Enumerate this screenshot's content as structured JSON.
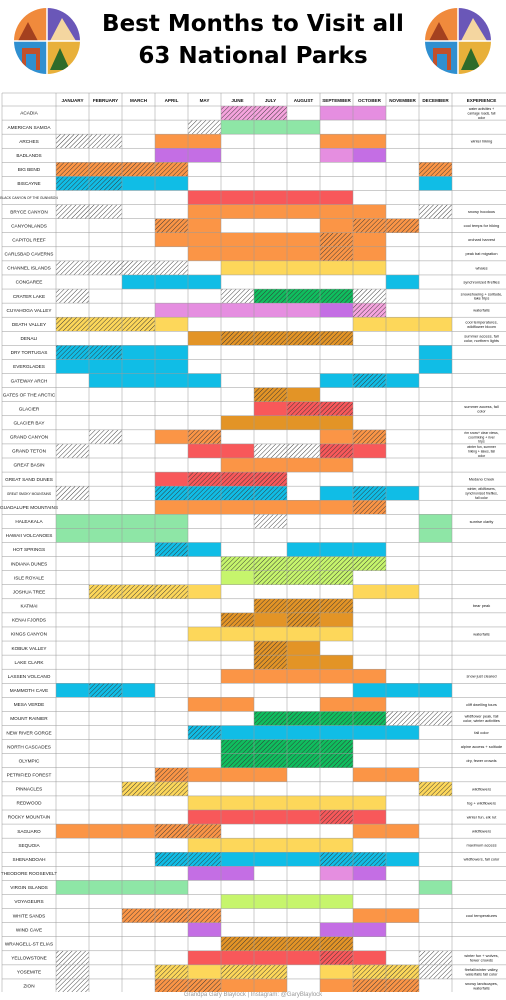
{
  "title_line1": "Best Months to Visit all",
  "title_line2": "63 National Parks",
  "chart_data": {
    "type": "heatmap",
    "columns": [
      "JANUARY",
      "FEBRUARY",
      "MARCH",
      "APRIL",
      "MAY",
      "JUNE",
      "JULY",
      "AUGUST",
      "SEPTEMBER",
      "OCTOBER",
      "NOVEMBER",
      "DECEMBER"
    ],
    "experience_header": "EXPERIENCE",
    "rows": [
      {
        "park": "ACADIA",
        "cells": "00000dd0mm00",
        "exp": "water activities + carriage roads, fall color"
      },
      {
        "park": "AMERICAN SAMOA",
        "cells": "0000hggg0000",
        "exp": ""
      },
      {
        "park": "ARCHES",
        "cells": "hh0oo000oo00",
        "exp": "winter hiking"
      },
      {
        "park": "BADLANDS",
        "cells": "000pp000mp00",
        "exp": ""
      },
      {
        "park": "BIG BEND",
        "cells": "OOOO0000000O",
        "exp": ""
      },
      {
        "park": "BISCAYNE",
        "cells": "TTcc0000000c",
        "exp": ""
      },
      {
        "park": "BLACK CANYON OF THE GUNNISON",
        "cells": "0000rrrrr000",
        "exp": ""
      },
      {
        "park": "BRYCE CANYON",
        "cells": "hh00oooooo0h",
        "exp": "snowy hoodoos"
      },
      {
        "park": "CANYONLANDS",
        "cells": "000Oo000oOO0",
        "exp": "cool temps for hiking"
      },
      {
        "park": "CAPITOL REEF",
        "cells": "000oooooOo00",
        "exp": "orchard harvest"
      },
      {
        "park": "CARLSBAD CAVERNS",
        "cells": "0000ooooOo00",
        "exp": "peak bat migration"
      },
      {
        "park": "CHANNEL ISLANDS",
        "cells": "hhhh0yyyyy00",
        "exp": "whales"
      },
      {
        "park": "CONGAREE",
        "cells": "00ccc00000c0",
        "exp": "synchronized fireflies"
      },
      {
        "park": "CRATER LAKE",
        "cells": "h0000hGGGh00",
        "exp": "snowshoeing + solitude, lake trips"
      },
      {
        "park": "CUYAHOGA VALLEY",
        "cells": "000mmmmmpd00",
        "exp": "waterfalls"
      },
      {
        "park": "DEATH VALLEY",
        "cells": "YYYy00000yyy",
        "exp": "cool temperatures, wildflower bloom"
      },
      {
        "park": "DENALI",
        "cells": "0000aAAAA000",
        "exp": "summer access, fall color, northern lights"
      },
      {
        "park": "DRY TORTUGAS",
        "cells": "TTcc0000000c",
        "exp": ""
      },
      {
        "park": "EVERGLADES",
        "cells": "cccc0000000c",
        "exp": ""
      },
      {
        "park": "GATEWAY ARCH",
        "cells": "0cccc000cTc0",
        "exp": ""
      },
      {
        "park": "GATES OF THE ARCTIC",
        "cells": "000000Aa0000",
        "exp": ""
      },
      {
        "park": "GLACIER",
        "cells": "000000rRR000",
        "exp": "summer access, fall color"
      },
      {
        "park": "GLACIER BAY",
        "cells": "00000aaaa000",
        "exp": ""
      },
      {
        "park": "GRAND CANYON",
        "cells": "0h0oO000oO00",
        "exp": "rim snow+ clear views, cool hiking + river trips"
      },
      {
        "park": "GRAND TETON",
        "cells": "h000rrhhRr00",
        "exp": "winter fun, summer hiking + lakes, fall color"
      },
      {
        "park": "GREAT BASIN",
        "cells": "00000oooo000",
        "exp": ""
      },
      {
        "park": "GREAT SAND DUNES",
        "cells": "000rRRR00000",
        "exp": "Medano Creek"
      },
      {
        "park": "GREAT SMOKY MOUNTAINS",
        "cells": "h00TTTT0cTc0",
        "exp": "winter, wildflowers, synchronized fireflies, fall color"
      },
      {
        "park": "GUADALUPE MOUNTAINS",
        "cells": "000ooooooO00",
        "exp": ""
      },
      {
        "park": "HALEAKALA",
        "cells": "gggg00h0000g",
        "exp": "sunrise clarity"
      },
      {
        "park": "HAWAII VOLCANOES",
        "cells": "gggg0000000g",
        "exp": ""
      },
      {
        "park": "HOT SPRINGS",
        "cells": "000Tc00ccc00",
        "exp": ""
      },
      {
        "park": "INDIANA DUNES",
        "cells": "00000LLLLL00",
        "exp": ""
      },
      {
        "park": "ISLE ROYALE",
        "cells": "00000lLLL000",
        "exp": ""
      },
      {
        "park": "JOSHUA TREE",
        "cells": "0YYYy0000yy0",
        "exp": ""
      },
      {
        "park": "KATMAI",
        "cells": "000000AAA000",
        "exp": "bear peak"
      },
      {
        "park": "KENAI FJORDS",
        "cells": "00000AaAa000",
        "exp": ""
      },
      {
        "park": "KINGS CANYON",
        "cells": "0000yyyyy000",
        "exp": "waterfalls"
      },
      {
        "park": "KOBUK VALLEY",
        "cells": "000000Aa0000",
        "exp": ""
      },
      {
        "park": "LAKE CLARK",
        "cells": "000000Aaa000",
        "exp": ""
      },
      {
        "park": "LASSEN VOLCANO",
        "cells": "00000ooooo00",
        "exp": "snow just cleared"
      },
      {
        "park": "MAMMOTH CAVE",
        "cells": "cTc000000ccc",
        "exp": ""
      },
      {
        "park": "MESA VERDE",
        "cells": "0000oo00oo00",
        "exp": "cliff dwelling tours"
      },
      {
        "park": "MOUNT RAINIER",
        "cells": "000000GGGGhh",
        "exp": "wildflower peak, fall color, winter activities"
      },
      {
        "park": "NEW RIVER GORGE",
        "cells": "0000Tcccccc0",
        "exp": "fall color"
      },
      {
        "park": "NORTH CASCADES",
        "cells": "00000GGGG000",
        "exp": "alpine access + solitude"
      },
      {
        "park": "OLYMPIC",
        "cells": "00000GGGG000",
        "exp": "dry, fewer crowds"
      },
      {
        "park": "PETRIFIED FOREST",
        "cells": "000Oooo00oo0",
        "exp": ""
      },
      {
        "park": "PINNACLES",
        "cells": "00YY0000000Y",
        "exp": "wildflowers"
      },
      {
        "park": "REDWOOD",
        "cells": "0000yyyyyy00",
        "exp": "fog + wildflowers"
      },
      {
        "park": "ROCKY MOUNTAIN",
        "cells": "0000rrrrRr00",
        "exp": "winter fun, elk rut"
      },
      {
        "park": "SAGUARO",
        "cells": "oooOO0000oo0",
        "exp": "wildflowers"
      },
      {
        "park": "SEQUOIA",
        "cells": "0000yyyyy000",
        "exp": "maximum access"
      },
      {
        "park": "SHENANDOAH",
        "cells": "000TTcccTTc0",
        "exp": "wildflowers, fall color"
      },
      {
        "park": "THEODORE ROOSEVELT",
        "cells": "0000pp00mp00",
        "exp": ""
      },
      {
        "park": "VIRGIN ISLANDS",
        "cells": "gggg0000000g",
        "exp": ""
      },
      {
        "park": "VOYAGEURS",
        "cells": "00000llll000",
        "exp": ""
      },
      {
        "park": "WHITE SANDS",
        "cells": "00OOO0000oo0",
        "exp": "cool temperatures"
      },
      {
        "park": "WIND CAVE",
        "cells": "0000p000pp00",
        "exp": ""
      },
      {
        "park": "WRANGELL-ST ELIAS",
        "cells": "00000AAAA000",
        "exp": ""
      },
      {
        "park": "YELLOWSTONE",
        "cells": "h000rrrrRr0h",
        "exp": "winter fun + wolves, fewer crowds"
      },
      {
        "park": "YOSEMITE",
        "cells": "h00YyYY0yYYh",
        "exp": "firefall/winter valley, waterfalls fall color"
      },
      {
        "park": "ZION",
        "cells": "h00OOoo0oOO0",
        "exp": "snowy landscapes, waterfalls"
      }
    ],
    "legend": {
      "0": "#ffffff",
      "h": "#ffffff",
      "d": "#f6a4de",
      "m": "#e58ee0",
      "p": "#c46ee4",
      "g": "#8ee6a6",
      "G": "#0fbe5e",
      "l": "#c6f56c",
      "L": "#c6f56c",
      "o": "#fb9546",
      "O": "#fb9546",
      "c": "#10bde6",
      "T": "#10bde6",
      "y": "#fdd75a",
      "Y": "#fdd75a",
      "r": "#f8585a",
      "R": "#f8585a",
      "a": "#e39426",
      "A": "#e39426"
    },
    "hatched_codes": "hOTYRAGLd"
  },
  "footer": "Grandpa Gary Blaylock | Instagram: @GaryBlaylock"
}
